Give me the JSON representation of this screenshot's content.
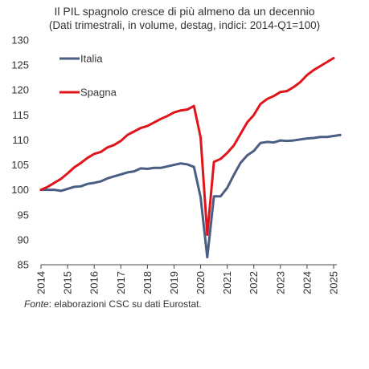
{
  "chart_data": {
    "type": "line",
    "title": "Il PIL spagnolo cresce di più almeno da un decennio",
    "subtitle": "(Dati trimestrali, in volume, destag, indici: 2014-Q1=100)",
    "ylim": [
      85,
      130
    ],
    "yticks": [
      "85",
      "90",
      "95",
      "100",
      "105",
      "110",
      "115",
      "120",
      "125",
      "130"
    ],
    "xticks": [
      "2014",
      "2015",
      "2016",
      "2017",
      "2018",
      "2019",
      "2020",
      "2021",
      "2022",
      "2023",
      "2024",
      "2025"
    ],
    "x_start": 2014.0,
    "x_step": 0.25,
    "xlim": [
      2014.0,
      2025.0
    ],
    "series": [
      {
        "name": "Italia",
        "color": "#4a5d82",
        "values": [
          100.0,
          100.0,
          100.0,
          99.8,
          100.2,
          100.6,
          100.7,
          101.2,
          101.4,
          101.7,
          102.3,
          102.7,
          103.1,
          103.5,
          103.7,
          104.3,
          104.2,
          104.4,
          104.4,
          104.7,
          105.0,
          105.3,
          105.1,
          104.6,
          98.5,
          86.5,
          98.7,
          98.7,
          100.4,
          103.0,
          105.4,
          106.9,
          107.8,
          109.4,
          109.6,
          109.5,
          109.9,
          109.8,
          109.9,
          110.1,
          110.3,
          110.4,
          110.6,
          110.6,
          110.8,
          111.0
        ]
      },
      {
        "name": "Spagna",
        "color": "#e0151b",
        "values": [
          100.0,
          100.6,
          101.4,
          102.2,
          103.3,
          104.5,
          105.4,
          106.4,
          107.2,
          107.6,
          108.5,
          109.0,
          109.8,
          111.0,
          111.7,
          112.4,
          112.8,
          113.5,
          114.2,
          114.8,
          115.5,
          115.9,
          116.1,
          116.8,
          110.5,
          91.0,
          105.6,
          106.2,
          107.4,
          108.9,
          111.2,
          113.5,
          115.0,
          117.2,
          118.2,
          118.8,
          119.6,
          119.8,
          120.6,
          121.6,
          123.0,
          124.0,
          124.8,
          125.6,
          126.4
        ]
      }
    ],
    "grid": false,
    "legend": "top-left"
  },
  "source": {
    "label": "Fonte",
    "text": ": elaborazioni CSC su dati Eurostat."
  }
}
